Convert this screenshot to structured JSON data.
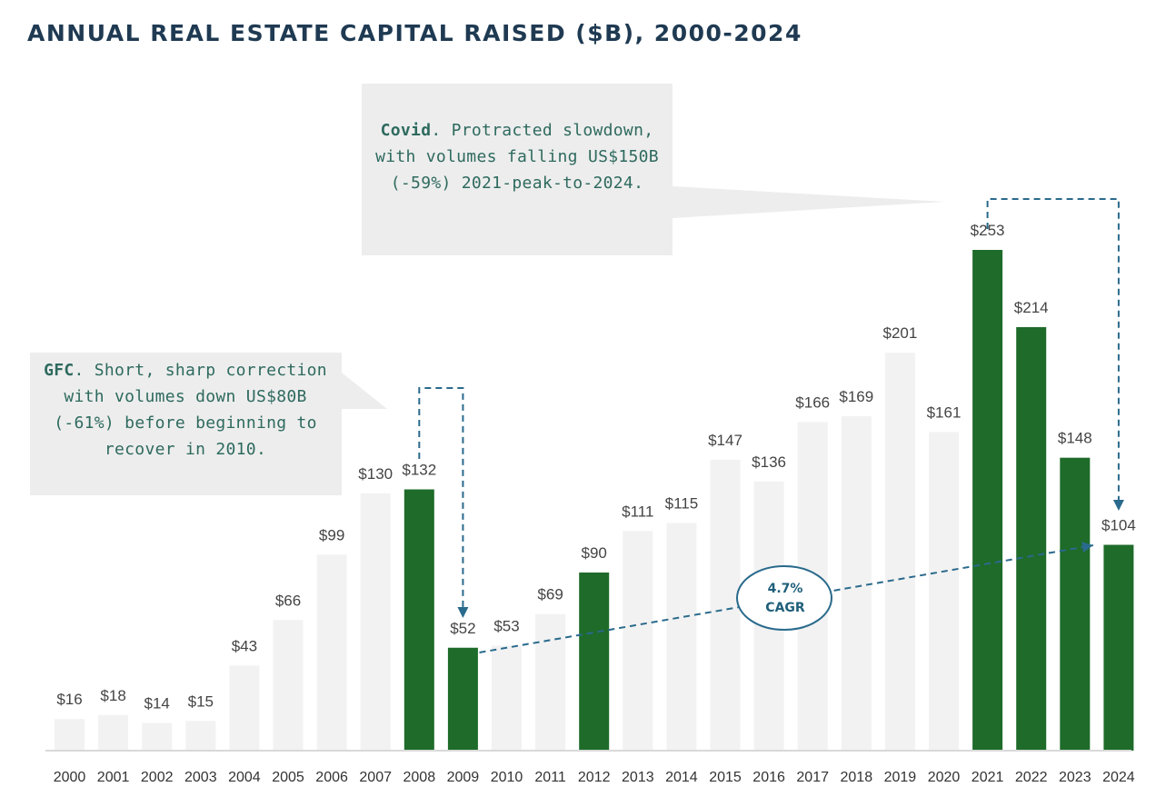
{
  "chart_data": {
    "type": "bar",
    "title": "ANNUAL REAL ESTATE CAPITAL RAISED ($B), 2000-2024",
    "categories": [
      "2000",
      "2001",
      "2002",
      "2003",
      "2004",
      "2005",
      "2006",
      "2007",
      "2008",
      "2009",
      "2010",
      "2011",
      "2012",
      "2013",
      "2014",
      "2015",
      "2016",
      "2017",
      "2018",
      "2019",
      "2020",
      "2021",
      "2022",
      "2023",
      "2024"
    ],
    "values": [
      16,
      18,
      14,
      15,
      43,
      66,
      99,
      130,
      132,
      52,
      53,
      69,
      90,
      111,
      115,
      147,
      136,
      166,
      169,
      201,
      161,
      253,
      214,
      148,
      104
    ],
    "data_labels": [
      "$16",
      "$18",
      "$14",
      "$15",
      "$43",
      "$66",
      "$99",
      "$130",
      "$132",
      "$52",
      "$53",
      "$69",
      "$90",
      "$111",
      "$115",
      "$147",
      "$136",
      "$166",
      "$169",
      "$201",
      "$161",
      "$253",
      "$214",
      "$148",
      "$104"
    ],
    "highlighted": [
      "2008",
      "2009",
      "2012",
      "2021",
      "2022",
      "2023",
      "2024"
    ],
    "colors": {
      "default": "#f2f2f2",
      "highlight": "#1e6b2a",
      "annotation": "#2a6a8c"
    },
    "ylim": [
      0,
      260
    ],
    "xlabel": "",
    "ylabel": "",
    "grid": false,
    "annotations": {
      "gfc": {
        "bold": "GFC",
        "text": ". Short, sharp correction with volumes down US$80B (-61%) before beginning to recover in 2010."
      },
      "covid": {
        "bold": "Covid",
        "text": ". Protracted slowdown, with volumes falling US$150B (-59%) 2021-peak-to-2024."
      },
      "cagr": {
        "line1": "4.7%",
        "line2": "CAGR"
      }
    }
  }
}
